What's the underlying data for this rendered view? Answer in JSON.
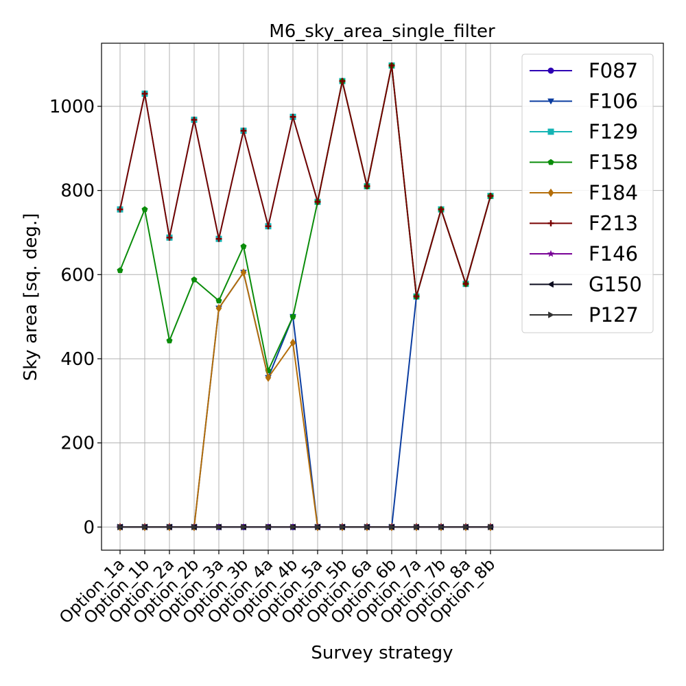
{
  "chart_data": {
    "type": "line",
    "title": "M6_sky_area_single_filter",
    "xlabel": "Survey strategy",
    "ylabel": "Sky area [sq. deg.]",
    "categories": [
      "Option_1a",
      "Option_1b",
      "Option_2a",
      "Option_2b",
      "Option_3a",
      "Option_3b",
      "Option_4a",
      "Option_4b",
      "Option_5a",
      "Option_5b",
      "Option_6a",
      "Option_6b",
      "Option_7a",
      "Option_7b",
      "Option_8a",
      "Option_8b"
    ],
    "ylim": [
      -55,
      1150
    ],
    "yticks": [
      0,
      200,
      400,
      600,
      800,
      1000
    ],
    "grid": true,
    "legend_position": "top-right",
    "series": [
      {
        "name": "F087",
        "color": "#2d00b4",
        "marker": "circle",
        "values": [
          0,
          0,
          0,
          0,
          0,
          0,
          0,
          0,
          0,
          0,
          0,
          0,
          0,
          0,
          0,
          0
        ]
      },
      {
        "name": "F106",
        "color": "#0a3ca0",
        "marker": "triangle-down",
        "values": [
          0,
          0,
          0,
          0,
          520,
          605,
          355,
          500,
          0,
          0,
          0,
          0,
          548,
          755,
          578,
          787
        ]
      },
      {
        "name": "F129",
        "color": "#14b4b4",
        "marker": "square",
        "values": [
          755,
          1030,
          688,
          968,
          685,
          942,
          715,
          975,
          773,
          1060,
          810,
          1097,
          548,
          755,
          578,
          787
        ]
      },
      {
        "name": "F158",
        "color": "#0a8c0a",
        "marker": "pentagon",
        "values": [
          610,
          755,
          443,
          588,
          538,
          667,
          372,
          500,
          773,
          1060,
          810,
          1097,
          548,
          755,
          578,
          787
        ]
      },
      {
        "name": "F184",
        "color": "#b46e0a",
        "marker": "diamond",
        "values": [
          0,
          0,
          0,
          0,
          520,
          605,
          355,
          438,
          0,
          0,
          0,
          0,
          0,
          0,
          0,
          0
        ]
      },
      {
        "name": "F213",
        "color": "#780000",
        "marker": "plus",
        "values": [
          755,
          1030,
          688,
          968,
          685,
          942,
          715,
          975,
          773,
          1060,
          810,
          1097,
          548,
          755,
          578,
          787
        ]
      },
      {
        "name": "F146",
        "color": "#780096",
        "marker": "star",
        "values": [
          0,
          0,
          0,
          0,
          0,
          0,
          0,
          0,
          0,
          0,
          0,
          0,
          0,
          0,
          0,
          0
        ]
      },
      {
        "name": "G150",
        "color": "#0a0a1e",
        "marker": "triangle-left",
        "values": [
          0,
          0,
          0,
          0,
          0,
          0,
          0,
          0,
          0,
          0,
          0,
          0,
          0,
          0,
          0,
          0
        ]
      },
      {
        "name": "P127",
        "color": "#323232",
        "marker": "triangle-right",
        "values": [
          0,
          0,
          0,
          0,
          0,
          0,
          0,
          0,
          0,
          0,
          0,
          0,
          0,
          0,
          0,
          0
        ]
      }
    ]
  }
}
